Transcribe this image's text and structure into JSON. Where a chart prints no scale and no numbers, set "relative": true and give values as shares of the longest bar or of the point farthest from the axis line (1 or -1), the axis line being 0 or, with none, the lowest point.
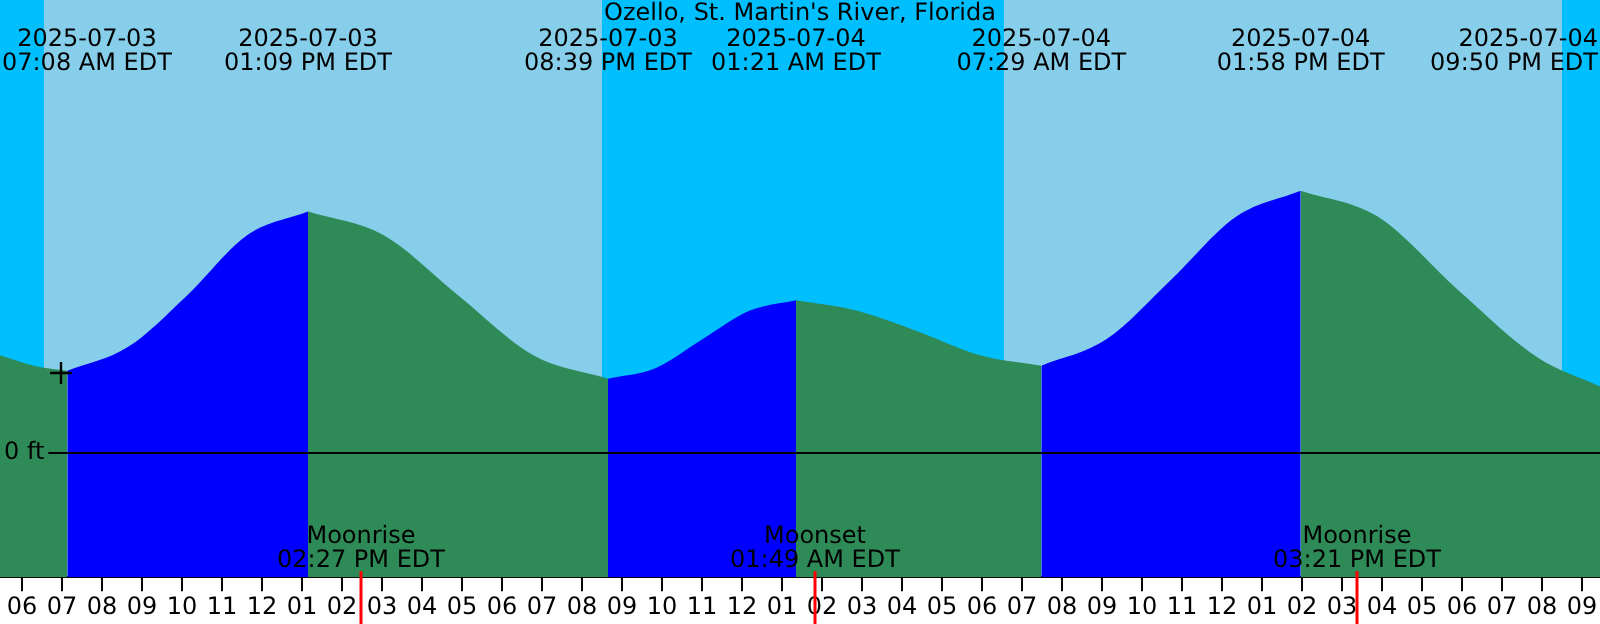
{
  "chart_data": {
    "type": "area",
    "title": "Ozello, St. Martin's River, Florida",
    "relative": true,
    "grid": false,
    "legend": false,
    "tick_labels": "x",
    "xlim": [
      "2025-07-03T05:27",
      "2025-07-04T21:27"
    ],
    "xticks": [
      {
        "value": "2025-07-03T06:00",
        "label": "06"
      },
      {
        "value": "2025-07-03T07:00",
        "label": "07"
      },
      {
        "value": "2025-07-03T08:00",
        "label": "08"
      },
      {
        "value": "2025-07-03T09:00",
        "label": "09"
      },
      {
        "value": "2025-07-03T10:00",
        "label": "10"
      },
      {
        "value": "2025-07-03T11:00",
        "label": "11"
      },
      {
        "value": "2025-07-03T12:00",
        "label": "12"
      },
      {
        "value": "2025-07-03T13:00",
        "label": "01"
      },
      {
        "value": "2025-07-03T14:00",
        "label": "02"
      },
      {
        "value": "2025-07-03T15:00",
        "label": "03"
      },
      {
        "value": "2025-07-03T16:00",
        "label": "04"
      },
      {
        "value": "2025-07-03T17:00",
        "label": "05"
      },
      {
        "value": "2025-07-03T18:00",
        "label": "06"
      },
      {
        "value": "2025-07-03T19:00",
        "label": "07"
      },
      {
        "value": "2025-07-03T20:00",
        "label": "08"
      },
      {
        "value": "2025-07-03T21:00",
        "label": "09"
      },
      {
        "value": "2025-07-03T22:00",
        "label": "10"
      },
      {
        "value": "2025-07-03T23:00",
        "label": "11"
      },
      {
        "value": "2025-07-04T00:00",
        "label": "12"
      },
      {
        "value": "2025-07-04T01:00",
        "label": "01"
      },
      {
        "value": "2025-07-04T02:00",
        "label": "02"
      },
      {
        "value": "2025-07-04T03:00",
        "label": "03"
      },
      {
        "value": "2025-07-04T04:00",
        "label": "04"
      },
      {
        "value": "2025-07-04T05:00",
        "label": "05"
      },
      {
        "value": "2025-07-04T06:00",
        "label": "06"
      },
      {
        "value": "2025-07-04T07:00",
        "label": "07"
      },
      {
        "value": "2025-07-04T08:00",
        "label": "08"
      },
      {
        "value": "2025-07-04T09:00",
        "label": "09"
      },
      {
        "value": "2025-07-04T10:00",
        "label": "10"
      },
      {
        "value": "2025-07-04T11:00",
        "label": "11"
      },
      {
        "value": "2025-07-04T12:00",
        "label": "12"
      },
      {
        "value": "2025-07-04T13:00",
        "label": "01"
      },
      {
        "value": "2025-07-04T14:00",
        "label": "02"
      },
      {
        "value": "2025-07-04T15:00",
        "label": "03"
      },
      {
        "value": "2025-07-04T16:00",
        "label": "04"
      },
      {
        "value": "2025-07-04T17:00",
        "label": "05"
      },
      {
        "value": "2025-07-04T18:00",
        "label": "06"
      },
      {
        "value": "2025-07-04T19:00",
        "label": "07"
      },
      {
        "value": "2025-07-04T20:00",
        "label": "08"
      },
      {
        "value": "2025-07-04T21:00",
        "label": "09"
      }
    ],
    "series": [
      {
        "color": "#2e8b57",
        "x": [
          "2025-07-03T05:27",
          "2025-07-03T06:18",
          "2025-07-03T07:08"
        ],
        "values": [
          0.37,
          0.33,
          0.31
        ]
      },
      {
        "color": "#0000ff",
        "x": [
          "2025-07-03T07:08",
          "2025-07-03T08:38",
          "2025-07-03T10:08",
          "2025-07-03T11:38",
          "2025-07-03T13:09"
        ],
        "values": [
          0.31,
          0.4,
          0.6,
          0.83,
          0.92
        ]
      },
      {
        "color": "#2e8b57",
        "x": [
          "2025-07-03T13:09",
          "2025-07-03T15:02",
          "2025-07-03T16:54",
          "2025-07-03T18:47",
          "2025-07-03T20:39"
        ],
        "values": [
          0.92,
          0.83,
          0.6,
          0.37,
          0.28
        ]
      },
      {
        "color": "#0000ff",
        "x": [
          "2025-07-03T20:39",
          "2025-07-03T21:50",
          "2025-07-03T23:00",
          "2025-07-04T00:11",
          "2025-07-04T01:21"
        ],
        "values": [
          0.28,
          0.32,
          0.43,
          0.54,
          0.58
        ]
      },
      {
        "color": "#2e8b57",
        "x": [
          "2025-07-04T01:21",
          "2025-07-04T02:53",
          "2025-07-04T04:25",
          "2025-07-04T05:57",
          "2025-07-04T07:29"
        ],
        "values": [
          0.58,
          0.54,
          0.46,
          0.37,
          0.33
        ]
      },
      {
        "color": "#0000ff",
        "x": [
          "2025-07-04T07:29",
          "2025-07-04T09:06",
          "2025-07-04T10:44",
          "2025-07-04T12:21",
          "2025-07-04T13:58"
        ],
        "values": [
          0.33,
          0.43,
          0.66,
          0.9,
          1.0
        ]
      },
      {
        "color": "#2e8b57",
        "x": [
          "2025-07-04T13:58",
          "2025-07-04T15:54",
          "2025-07-04T17:54",
          "2025-07-04T19:54",
          "2025-07-04T21:27"
        ],
        "values": [
          1.0,
          0.9,
          0.62,
          0.36,
          0.25
        ]
      }
    ],
    "bands": [
      {
        "axis": "x",
        "from": "2025-07-03T05:27",
        "to": "2025-07-03T06:33",
        "color": "#00bfff"
      },
      {
        "axis": "x",
        "from": "2025-07-03T06:33",
        "to": "2025-07-03T20:30",
        "color": "#87ceeb"
      },
      {
        "axis": "x",
        "from": "2025-07-03T20:30",
        "to": "2025-07-04T06:33",
        "color": "#00bfff"
      },
      {
        "axis": "x",
        "from": "2025-07-04T06:33",
        "to": "2025-07-04T20:30",
        "color": "#87ceeb"
      },
      {
        "axis": "x",
        "from": "2025-07-04T20:30",
        "to": "2025-07-04T21:27",
        "color": "#00bfff"
      }
    ],
    "ref_lines": [
      {
        "axis": "y",
        "value": 0,
        "label": "0 ft",
        "color": "#000000"
      },
      {
        "axis": "x",
        "value": "2025-07-03T14:27",
        "label": "Moonrise\n02:27 PM EDT",
        "color": "#ff0000"
      },
      {
        "axis": "x",
        "value": "2025-07-04T01:49",
        "label": "Moonset\n01:49 AM EDT",
        "color": "#ff0000"
      },
      {
        "axis": "x",
        "value": "2025-07-04T15:21",
        "label": "Moonrise\n03:21 PM EDT",
        "color": "#ff0000"
      }
    ],
    "annotations": [
      "2025-07-03\n07:08 AM EDT",
      "2025-07-03\n01:09 PM EDT",
      "2025-07-03\n08:39 PM EDT",
      "2025-07-04\n01:21 AM EDT",
      "2025-07-04\n07:29 AM EDT",
      "2025-07-04\n01:58 PM EDT",
      "2025-07-04\n09:50 PM EDT"
    ]
  }
}
